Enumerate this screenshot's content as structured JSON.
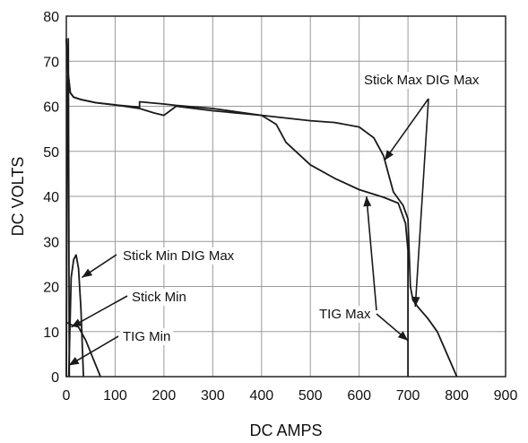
{
  "chart_data": {
    "type": "line",
    "xlabel": "DC AMPS",
    "ylabel": "DC VOLTS",
    "xlim": [
      0,
      900
    ],
    "ylim": [
      0,
      80
    ],
    "x_ticks": [
      "0",
      "100",
      "200",
      "300",
      "400",
      "500",
      "600",
      "700",
      "800",
      "900"
    ],
    "y_ticks": [
      "0",
      "10",
      "20",
      "30",
      "40",
      "50",
      "60",
      "70",
      "80"
    ],
    "grid": true,
    "series": [
      {
        "name": "Stick Max DIG Max",
        "x": [
          0,
          3,
          8,
          15,
          30,
          60,
          100,
          150,
          150,
          200,
          225,
          300,
          400,
          450,
          500,
          550,
          600,
          630,
          650,
          660,
          670,
          680,
          690,
          700,
          705,
          710,
          720,
          740,
          760,
          780,
          800
        ],
        "y": [
          75,
          68,
          63,
          62,
          61.5,
          60.8,
          60.3,
          59.8,
          61,
          60.5,
          60.2,
          59.5,
          58,
          57.4,
          56.8,
          56.4,
          55.4,
          53,
          49,
          45,
          41,
          39.5,
          38,
          35,
          20,
          17,
          15.5,
          13,
          10,
          5,
          0
        ]
      },
      {
        "name": "TIG Max",
        "x": [
          0,
          3,
          8,
          15,
          30,
          60,
          100,
          150,
          180,
          200,
          225,
          300,
          400,
          430,
          450,
          500,
          550,
          600,
          650,
          680,
          695,
          700,
          700
        ],
        "y": [
          75,
          68,
          63,
          62,
          61.5,
          60.8,
          60.3,
          59.5,
          58.5,
          58,
          60,
          59,
          58,
          56,
          52,
          47,
          44,
          41.5,
          39.8,
          38.5,
          34,
          28,
          0
        ]
      },
      {
        "name": "Stick Min DIG Max",
        "x": [
          5,
          10,
          15,
          20,
          25,
          30,
          35
        ],
        "y": [
          0,
          22,
          26,
          27,
          24,
          15,
          0
        ]
      },
      {
        "name": "Stick Min",
        "x": [
          2,
          10,
          25,
          40,
          55,
          70
        ],
        "y": [
          12,
          11.5,
          11,
          8,
          4,
          0
        ]
      },
      {
        "name": "TIG Min",
        "x": [
          0,
          2,
          4,
          6
        ],
        "y": [
          0,
          60,
          75,
          0
        ]
      }
    ],
    "annotations": [
      {
        "text": "Stick Max DIG Max",
        "arrow_targets": [
          [
            652,
            48
          ],
          [
            715,
            15.5
          ]
        ]
      },
      {
        "text": "TIG Max",
        "arrow_targets": [
          [
            615,
            40
          ],
          [
            700,
            8
          ]
        ]
      },
      {
        "text": "Stick Min DIG Max",
        "arrow_targets": [
          [
            32,
            22
          ]
        ]
      },
      {
        "text": "Stick Min",
        "arrow_targets": [
          [
            10,
            11
          ]
        ]
      },
      {
        "text": "TIG Min",
        "arrow_targets": [
          [
            5,
            2.5
          ]
        ]
      }
    ]
  }
}
